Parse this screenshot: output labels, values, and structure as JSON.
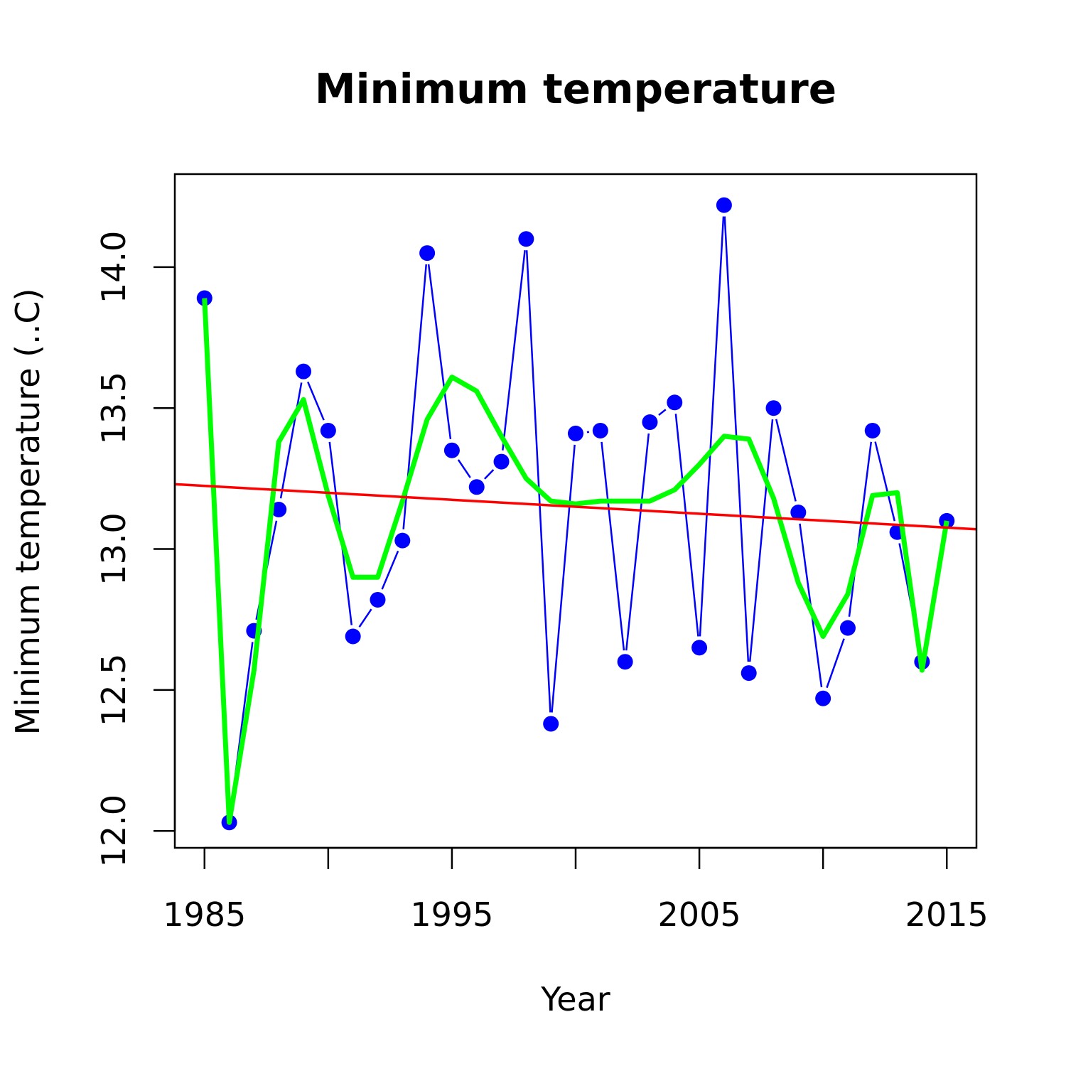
{
  "chart_data": {
    "type": "line",
    "title": "Minimum temperature",
    "xlabel": "Year",
    "ylabel": "Minimum temperature (..C)",
    "xlim": [
      1983.8,
      2016.2
    ],
    "ylim": [
      11.94,
      14.33
    ],
    "x_ticks": [
      1985,
      1990,
      1995,
      2000,
      2005,
      2010,
      2015
    ],
    "x_tick_labels": [
      "1985",
      "",
      "1995",
      "",
      "2005",
      "",
      "2015"
    ],
    "y_ticks": [
      12.0,
      12.5,
      13.0,
      13.5,
      14.0
    ],
    "y_tick_labels": [
      "12.0",
      "12.5",
      "13.0",
      "13.5",
      "14.0"
    ],
    "grid": false,
    "colors": {
      "observed": "#0000ff",
      "smooth": "#00ff00",
      "trend": "#ff0000",
      "axis": "#000000"
    },
    "series": [
      {
        "role": "observed",
        "style": "points-and-lines",
        "x": [
          1985,
          1986,
          1987,
          1988,
          1989,
          1990,
          1991,
          1992,
          1993,
          1994,
          1995,
          1996,
          1997,
          1998,
          1999,
          2000,
          2001,
          2002,
          2003,
          2004,
          2005,
          2006,
          2007,
          2008,
          2009,
          2010,
          2011,
          2012,
          2013,
          2014,
          2015
        ],
        "y": [
          13.89,
          12.03,
          12.71,
          13.14,
          13.63,
          13.42,
          12.69,
          12.82,
          13.03,
          14.05,
          13.35,
          13.22,
          13.31,
          14.1,
          12.38,
          13.41,
          13.42,
          12.6,
          13.45,
          13.52,
          12.65,
          14.22,
          12.56,
          13.5,
          13.13,
          12.47,
          12.72,
          13.42,
          13.06,
          12.6,
          13.1
        ]
      },
      {
        "role": "smooth",
        "style": "line",
        "x": [
          1985,
          1986,
          1987,
          1988,
          1989,
          1990,
          1991,
          1992,
          1993,
          1994,
          1995,
          1996,
          1997,
          1998,
          1999,
          2000,
          2001,
          2002,
          2003,
          2004,
          2005,
          2006,
          2007,
          2008,
          2009,
          2010,
          2011,
          2012,
          2013,
          2014,
          2015
        ],
        "y": [
          13.89,
          12.03,
          12.57,
          13.38,
          13.53,
          13.19,
          12.9,
          12.9,
          13.17,
          13.46,
          13.61,
          13.56,
          13.4,
          13.25,
          13.17,
          13.16,
          13.17,
          13.17,
          13.17,
          13.21,
          13.3,
          13.4,
          13.39,
          13.18,
          12.88,
          12.69,
          12.84,
          13.19,
          13.2,
          12.57,
          13.1
        ]
      },
      {
        "role": "trend",
        "style": "line",
        "x": [
          1983.8,
          2016.2
        ],
        "y": [
          13.23,
          13.07
        ]
      }
    ]
  }
}
